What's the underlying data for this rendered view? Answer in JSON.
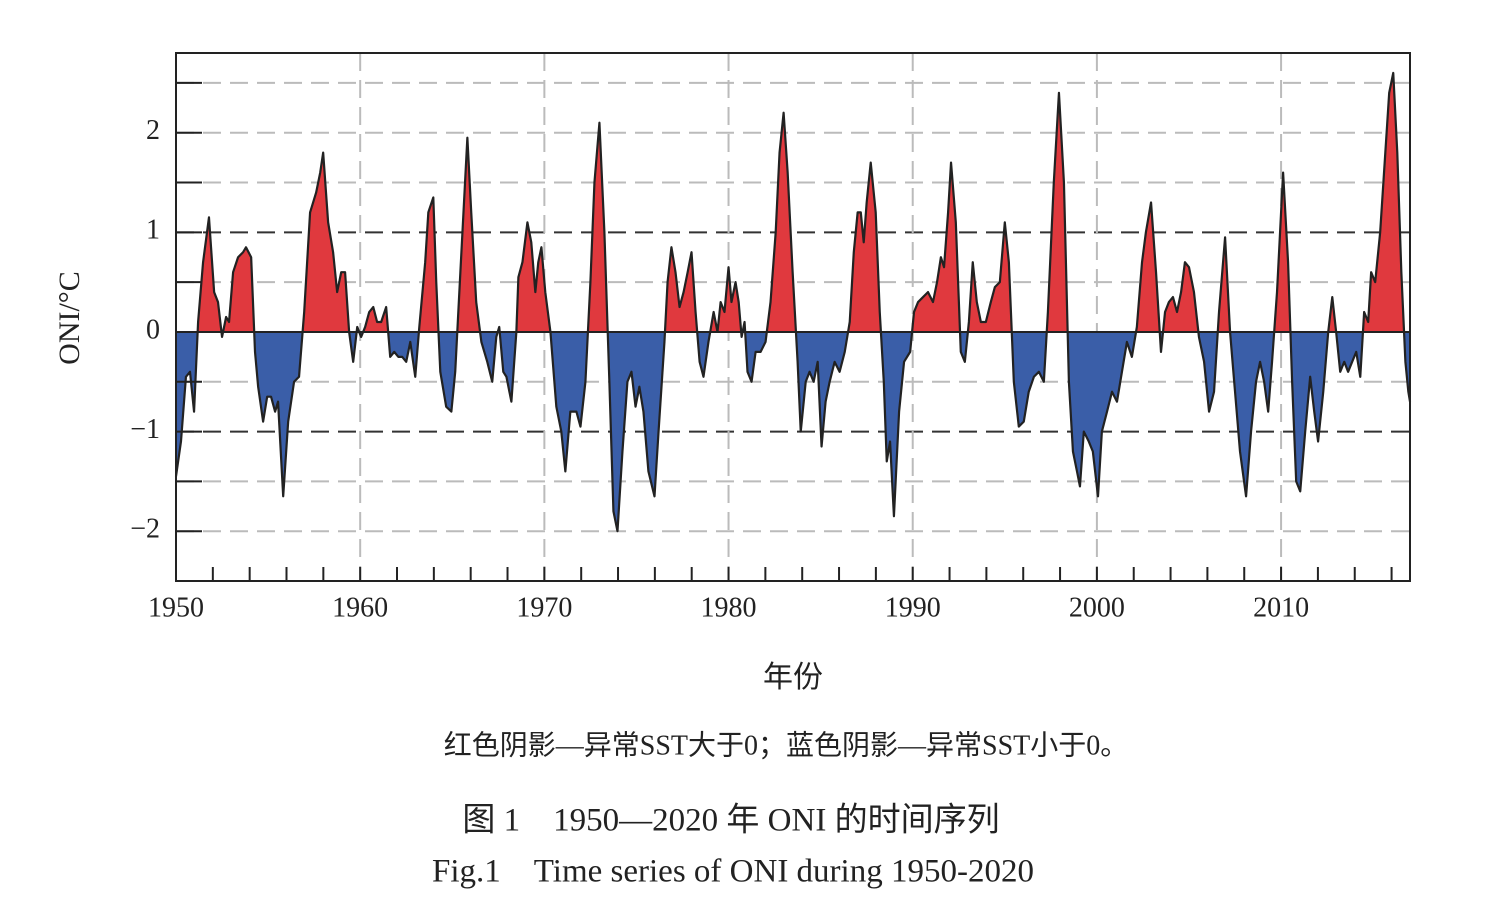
{
  "chart_data": {
    "type": "area",
    "title": "图 1　1950—2020 年 ONI 的时间序列",
    "subtitle": "Fig.1　Time series of ONI during 1950-2020",
    "annotation": "红色阴影—异常SST大于0；蓝色阴影—异常SST小于0。",
    "xlabel": "年份",
    "ylabel": "ONI/°C",
    "positive_color": "#e0393e",
    "negative_color": "#3a5ea8",
    "line_color": "#222222",
    "xlim": [
      1950,
      2017
    ],
    "ylim": [
      -2.5,
      2.8
    ],
    "xticks": [
      1950,
      1960,
      1970,
      1980,
      1990,
      2000,
      2010
    ],
    "xminorticks": [
      1952,
      1954,
      1956,
      1958,
      1962,
      1964,
      1966,
      1968,
      1972,
      1974,
      1976,
      1978,
      1982,
      1984,
      1986,
      1988,
      1992,
      1994,
      1996,
      1998,
      2002,
      2004,
      2006,
      2008,
      2012,
      2014,
      2016
    ],
    "yticks": [
      {
        "value": -2,
        "label": "−2"
      },
      {
        "value": -1,
        "label": "−1"
      },
      0,
      1,
      2
    ],
    "yminorticks": [
      -1.5,
      -0.5,
      0.5,
      1.5,
      2.5
    ],
    "major_grid": [
      -1,
      1
    ],
    "grid": true,
    "x": [
      1950.0,
      1950.27,
      1950.54,
      1950.76,
      1950.98,
      1951.2,
      1951.47,
      1951.79,
      1952.07,
      1952.28,
      1952.5,
      1952.72,
      1952.88,
      1953.1,
      1953.37,
      1953.64,
      1953.8,
      1954.08,
      1954.29,
      1954.46,
      1954.73,
      1954.95,
      1955.16,
      1955.38,
      1955.54,
      1955.82,
      1956.09,
      1956.41,
      1956.68,
      1956.96,
      1957.28,
      1957.61,
      1957.83,
      1957.99,
      1958.26,
      1958.53,
      1958.75,
      1958.97,
      1959.18,
      1959.4,
      1959.62,
      1959.84,
      1960.05,
      1960.27,
      1960.49,
      1960.71,
      1960.92,
      1961.14,
      1961.41,
      1961.63,
      1961.85,
      1962.07,
      1962.28,
      1962.5,
      1962.72,
      1962.99,
      1963.21,
      1963.53,
      1963.7,
      1963.97,
      1964.13,
      1964.35,
      1964.67,
      1964.95,
      1965.16,
      1965.44,
      1965.82,
      1966.03,
      1966.3,
      1966.58,
      1966.9,
      1967.17,
      1967.39,
      1967.55,
      1967.77,
      1967.94,
      1968.21,
      1968.48,
      1968.59,
      1968.81,
      1969.08,
      1969.29,
      1969.51,
      1969.67,
      1969.84,
      1970.05,
      1970.33,
      1970.65,
      1970.92,
      1971.14,
      1971.41,
      1971.74,
      1971.96,
      1972.23,
      1972.5,
      1972.72,
      1972.99,
      1973.26,
      1973.53,
      1973.75,
      1973.97,
      1974.24,
      1974.51,
      1974.73,
      1974.95,
      1975.16,
      1975.38,
      1975.65,
      1975.98,
      1976.2,
      1976.52,
      1976.69,
      1976.9,
      1977.12,
      1977.34,
      1977.56,
      1977.78,
      1977.99,
      1978.21,
      1978.43,
      1978.64,
      1978.91,
      1979.19,
      1979.4,
      1979.57,
      1979.78,
      1980.0,
      1980.16,
      1980.38,
      1980.55,
      1980.71,
      1980.87,
      1981.03,
      1981.25,
      1981.47,
      1981.74,
      1982.01,
      1982.28,
      1982.56,
      1982.77,
      1982.99,
      1983.21,
      1983.48,
      1983.75,
      1983.92,
      1984.19,
      1984.4,
      1984.62,
      1984.84,
      1985.05,
      1985.27,
      1985.49,
      1985.76,
      1986.03,
      1986.31,
      1986.58,
      1986.8,
      1987.01,
      1987.18,
      1987.34,
      1987.5,
      1987.72,
      1987.99,
      1988.21,
      1988.43,
      1988.59,
      1988.77,
      1988.98,
      1989.26,
      1989.53,
      1989.86,
      1990.07,
      1990.29,
      1990.56,
      1990.83,
      1991.1,
      1991.32,
      1991.53,
      1991.7,
      1991.92,
      1992.08,
      1992.34,
      1992.61,
      1992.83,
      1993.05,
      1993.26,
      1993.48,
      1993.7,
      1993.97,
      1994.24,
      1994.46,
      1994.73,
      1995.0,
      1995.22,
      1995.49,
      1995.76,
      1996.03,
      1996.3,
      1996.58,
      1996.85,
      1997.12,
      1997.34,
      1997.66,
      1997.94,
      1998.21,
      1998.48,
      1998.7,
      1998.92,
      1999.08,
      1999.29,
      1999.56,
      1999.78,
      2000.06,
      2000.27,
      2000.55,
      2000.82,
      2001.09,
      2001.36,
      2001.63,
      2001.9,
      2002.17,
      2002.45,
      2002.66,
      2002.94,
      2003.21,
      2003.48,
      2003.7,
      2003.91,
      2004.13,
      2004.35,
      2004.57,
      2004.78,
      2005.0,
      2005.27,
      2005.54,
      2005.82,
      2006.09,
      2006.36,
      2006.63,
      2006.96,
      2007.23,
      2007.5,
      2007.77,
      2008.1,
      2008.37,
      2008.64,
      2008.86,
      2009.08,
      2009.3,
      2009.51,
      2009.78,
      2010.11,
      2010.38,
      2010.6,
      2010.82,
      2011.04,
      2011.31,
      2011.58,
      2011.8,
      2012.01,
      2012.29,
      2012.56,
      2012.78,
      2012.99,
      2013.21,
      2013.43,
      2013.64,
      2013.86,
      2014.08,
      2014.3,
      2014.51,
      2014.73,
      2014.89,
      2015.11,
      2015.38,
      2015.66,
      2015.87,
      2016.09,
      2016.31,
      2016.53,
      2016.75,
      2016.91,
      2017.0
    ],
    "values": [
      -1.45,
      -1.1,
      -0.45,
      -0.4,
      -0.8,
      0.1,
      0.7,
      1.15,
      0.4,
      0.3,
      -0.05,
      0.15,
      0.1,
      0.6,
      0.75,
      0.8,
      0.85,
      0.75,
      -0.2,
      -0.55,
      -0.9,
      -0.65,
      -0.65,
      -0.8,
      -0.7,
      -1.65,
      -0.9,
      -0.5,
      -0.45,
      0.2,
      1.2,
      1.4,
      1.6,
      1.8,
      1.1,
      0.8,
      0.4,
      0.6,
      0.6,
      0.0,
      -0.3,
      0.05,
      -0.05,
      0.05,
      0.2,
      0.25,
      0.1,
      0.1,
      0.25,
      -0.25,
      -0.2,
      -0.25,
      -0.25,
      -0.3,
      -0.1,
      -0.45,
      0.05,
      0.7,
      1.2,
      1.35,
      0.5,
      -0.4,
      -0.75,
      -0.8,
      -0.4,
      0.6,
      1.95,
      1.2,
      0.3,
      -0.1,
      -0.3,
      -0.5,
      -0.05,
      0.05,
      -0.4,
      -0.45,
      -0.7,
      0.0,
      0.55,
      0.7,
      1.1,
      0.9,
      0.4,
      0.7,
      0.85,
      0.4,
      0.0,
      -0.75,
      -1.0,
      -1.4,
      -0.8,
      -0.8,
      -0.95,
      -0.5,
      0.5,
      1.5,
      2.1,
      1.0,
      -0.5,
      -1.8,
      -2.0,
      -1.2,
      -0.5,
      -0.4,
      -0.75,
      -0.55,
      -0.8,
      -1.4,
      -1.65,
      -1.0,
      -0.1,
      0.5,
      0.85,
      0.6,
      0.25,
      0.4,
      0.6,
      0.8,
      0.2,
      -0.3,
      -0.45,
      -0.1,
      0.2,
      0.0,
      0.3,
      0.2,
      0.65,
      0.3,
      0.5,
      0.3,
      -0.05,
      0.1,
      -0.4,
      -0.5,
      -0.2,
      -0.2,
      -0.1,
      0.3,
      1.0,
      1.8,
      2.2,
      1.6,
      0.6,
      -0.3,
      -1.0,
      -0.5,
      -0.4,
      -0.5,
      -0.3,
      -1.15,
      -0.7,
      -0.5,
      -0.3,
      -0.4,
      -0.2,
      0.1,
      0.8,
      1.2,
      1.2,
      0.9,
      1.3,
      1.7,
      1.2,
      0.2,
      -0.5,
      -1.3,
      -1.1,
      -1.85,
      -0.8,
      -0.3,
      -0.2,
      0.2,
      0.3,
      0.35,
      0.4,
      0.3,
      0.5,
      0.75,
      0.65,
      1.2,
      1.7,
      1.1,
      -0.2,
      -0.3,
      0.1,
      0.7,
      0.3,
      0.1,
      0.1,
      0.3,
      0.45,
      0.5,
      1.1,
      0.7,
      -0.5,
      -0.95,
      -0.9,
      -0.6,
      -0.45,
      -0.4,
      -0.5,
      0.2,
      1.5,
      2.4,
      1.5,
      -0.5,
      -1.2,
      -1.4,
      -1.55,
      -1.0,
      -1.1,
      -1.2,
      -1.65,
      -1.0,
      -0.8,
      -0.6,
      -0.7,
      -0.4,
      -0.1,
      -0.25,
      0.05,
      0.7,
      1.0,
      1.3,
      0.6,
      -0.2,
      0.2,
      0.3,
      0.35,
      0.2,
      0.4,
      0.7,
      0.65,
      0.4,
      -0.05,
      -0.3,
      -0.8,
      -0.6,
      0.2,
      0.95,
      0.0,
      -0.6,
      -1.2,
      -1.65,
      -1.0,
      -0.5,
      -0.3,
      -0.5,
      -0.8,
      -0.3,
      0.4,
      1.6,
      0.7,
      -0.5,
      -1.5,
      -1.6,
      -1.0,
      -0.45,
      -0.8,
      -1.1,
      -0.6,
      0.0,
      0.35,
      0.0,
      -0.4,
      -0.3,
      -0.4,
      -0.3,
      -0.2,
      -0.45,
      0.2,
      0.1,
      0.6,
      0.5,
      1.0,
      1.8,
      2.4,
      2.6,
      1.8,
      0.6,
      -0.3,
      -0.6,
      -0.7
    ]
  }
}
